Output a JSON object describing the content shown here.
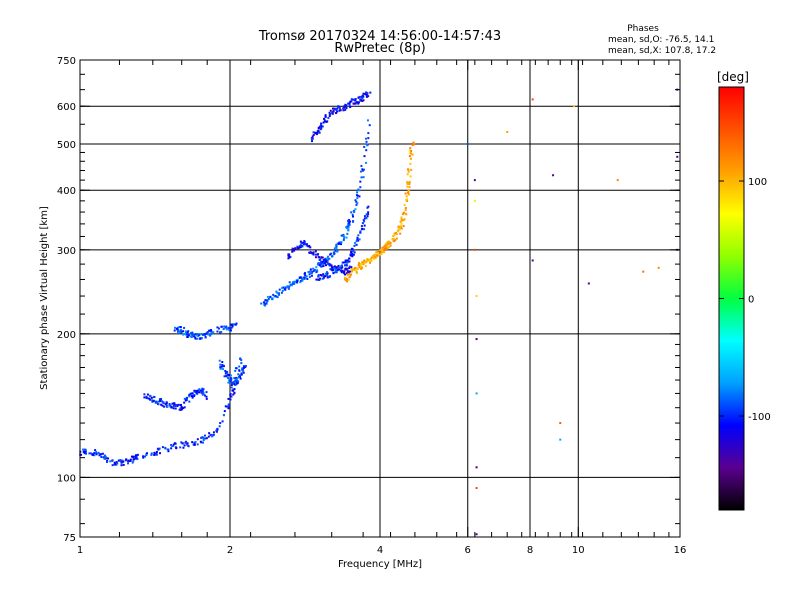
{
  "header": {
    "title_line1": "Tromsø 20170324 14:56:00-14:57:43",
    "title_line2": "RwPretec (8p)",
    "stats_title": "Phases",
    "stats_o": "mean, sd,O: -76.5, 14.1",
    "stats_x": "mean, sd,X: 107.8, 17.2"
  },
  "chart_data": {
    "type": "scatter",
    "xlabel": "Frequency [MHz]",
    "ylabel": "Stationary phase Virtual Height [km]",
    "xscale": "log",
    "yscale": "log",
    "xlim": [
      1,
      16
    ],
    "ylim": [
      75,
      750
    ],
    "xticks": [
      1,
      2,
      4,
      6,
      8,
      10,
      16
    ],
    "xtick_labels": [
      "1",
      "2",
      "4",
      "6",
      "8",
      "10",
      "16"
    ],
    "yticks": [
      75,
      100,
      200,
      300,
      400,
      500,
      600,
      750
    ],
    "ytick_labels": [
      "75",
      "100",
      "200",
      "300",
      "400",
      "500",
      "600",
      "750"
    ],
    "grid": true,
    "colorbar": {
      "label": "[deg]",
      "range": [
        -180,
        180
      ],
      "ticks": [
        100,
        0,
        -100
      ],
      "tick_labels": [
        "100",
        "0",
        "-100"
      ],
      "colors": [
        "#000000",
        "#5a0090",
        "#0000ff",
        "#00a0ff",
        "#00ffff",
        "#00ff40",
        "#90ff00",
        "#ffff00",
        "#ffa000",
        "#ff5000",
        "#ff0000"
      ]
    },
    "series": [
      {
        "phase": -100,
        "x": [
          1.0,
          1.05,
          1.1,
          1.15,
          1.2,
          1.25,
          1.3,
          1.4,
          1.5,
          1.6,
          1.7,
          1.8,
          1.9,
          2.0,
          2.05,
          2.1
        ],
        "y": [
          113,
          113,
          111,
          108,
          107,
          108,
          110,
          112,
          115,
          117,
          118,
          121,
          126,
          145,
          160,
          178
        ]
      },
      {
        "phase": -100,
        "x": [
          1.35,
          1.4,
          1.45,
          1.5,
          1.55,
          1.6,
          1.65,
          1.7,
          1.75,
          1.8
        ],
        "y": [
          148,
          146,
          144,
          142,
          141,
          140,
          146,
          150,
          152,
          148
        ]
      },
      {
        "phase": -90,
        "x": [
          1.55,
          1.6,
          1.65,
          1.7,
          1.75,
          1.8,
          1.9,
          2.0,
          2.05
        ],
        "y": [
          203,
          204,
          199,
          198,
          197,
          200,
          204,
          206,
          208
        ]
      },
      {
        "phase": -95,
        "x": [
          1.9,
          1.95,
          2.0,
          2.05,
          2.1,
          2.15
        ],
        "y": [
          175,
          168,
          160,
          158,
          165,
          172
        ]
      },
      {
        "phase": -90,
        "x": [
          2.3,
          2.4,
          2.5,
          2.6,
          2.7,
          2.8,
          2.9,
          3.0,
          3.1,
          3.2,
          3.3,
          3.4,
          3.5,
          3.6,
          3.7,
          3.8
        ],
        "y": [
          228,
          236,
          243,
          250,
          256,
          262,
          268,
          275,
          284,
          294,
          306,
          322,
          345,
          380,
          440,
          560
        ]
      },
      {
        "phase": -110,
        "x": [
          2.6,
          2.7,
          2.8,
          2.9,
          3.0,
          3.1,
          3.2,
          3.3,
          3.4,
          3.5
        ],
        "y": [
          290,
          300,
          310,
          300,
          290,
          282,
          276,
          272,
          270,
          274
        ]
      },
      {
        "phase": -110,
        "x": [
          2.9,
          3.0,
          3.1,
          3.2,
          3.3,
          3.4,
          3.5,
          3.6,
          3.7,
          3.8
        ],
        "y": [
          510,
          530,
          560,
          585,
          590,
          595,
          610,
          615,
          625,
          640
        ]
      },
      {
        "phase": 107,
        "x": [
          3.4,
          3.5,
          3.6,
          3.7,
          3.8,
          3.9,
          4.0,
          4.1,
          4.2,
          4.3,
          4.4,
          4.5,
          4.55,
          4.6,
          4.65
        ],
        "y": [
          260,
          268,
          274,
          280,
          285,
          290,
          296,
          303,
          310,
          320,
          335,
          360,
          400,
          445,
          500
        ]
      },
      {
        "phase": -100,
        "x": [
          3.0,
          3.1,
          3.2,
          3.3,
          3.4,
          3.5,
          3.6,
          3.7,
          3.8
        ],
        "y": [
          262,
          264,
          270,
          275,
          280,
          292,
          310,
          335,
          370
        ]
      }
    ],
    "sparse_points": [
      {
        "x": 6.0,
        "y": 500,
        "phase": -90
      },
      {
        "x": 6.2,
        "y": 420,
        "phase": -140
      },
      {
        "x": 6.2,
        "y": 380,
        "phase": 60
      },
      {
        "x": 6.2,
        "y": 300,
        "phase": 150
      },
      {
        "x": 6.25,
        "y": 240,
        "phase": 90
      },
      {
        "x": 6.25,
        "y": 195,
        "phase": -150
      },
      {
        "x": 6.25,
        "y": 150,
        "phase": -70
      },
      {
        "x": 6.25,
        "y": 105,
        "phase": -150
      },
      {
        "x": 6.25,
        "y": 95,
        "phase": 150
      },
      {
        "x": 6.25,
        "y": 76,
        "phase": -140
      },
      {
        "x": 7.2,
        "y": 530,
        "phase": 110
      },
      {
        "x": 8.1,
        "y": 620,
        "phase": 150
      },
      {
        "x": 8.1,
        "y": 285,
        "phase": -140
      },
      {
        "x": 8.9,
        "y": 430,
        "phase": -140
      },
      {
        "x": 9.2,
        "y": 130,
        "phase": 140
      },
      {
        "x": 9.2,
        "y": 120,
        "phase": -70
      },
      {
        "x": 9.8,
        "y": 600,
        "phase": 100
      },
      {
        "x": 10.5,
        "y": 255,
        "phase": -140
      },
      {
        "x": 12.0,
        "y": 420,
        "phase": 120
      },
      {
        "x": 13.5,
        "y": 270,
        "phase": 130
      },
      {
        "x": 14.5,
        "y": 275,
        "phase": 120
      },
      {
        "x": 15.8,
        "y": 650,
        "phase": -120
      },
      {
        "x": 15.8,
        "y": 470,
        "phase": -140
      },
      {
        "x": 15.8,
        "y": 300,
        "phase": -140
      }
    ]
  }
}
